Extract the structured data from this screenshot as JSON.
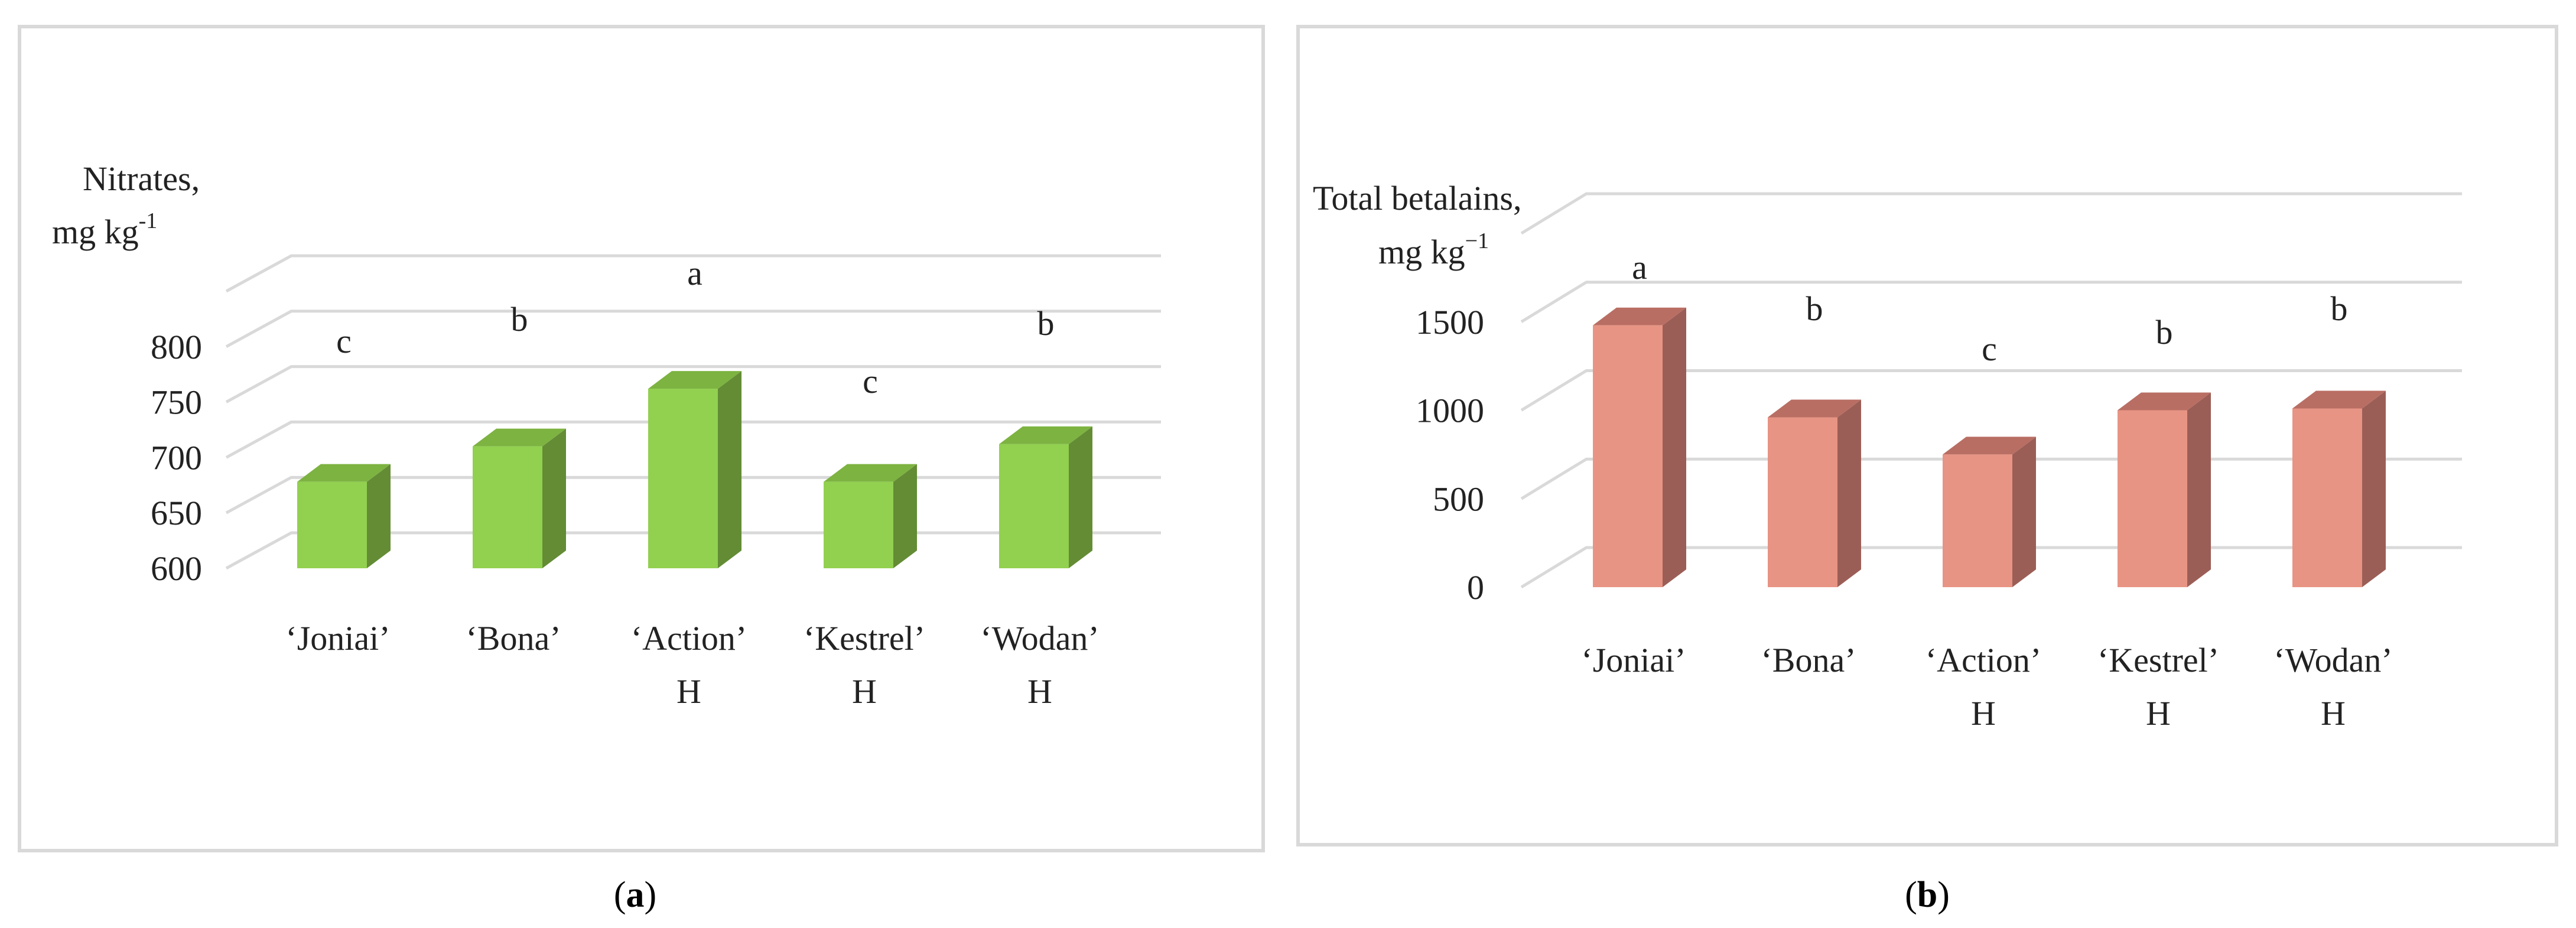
{
  "chart_data": [
    {
      "type": "bar",
      "panel_label": "a",
      "categories": [
        "‘Joniai’",
        "‘Bona’",
        "‘Action’ H",
        "‘Kestrel’ H",
        "‘Wodan’ H"
      ],
      "category_lines": [
        [
          "‘Joniai’"
        ],
        [
          "‘Bona’"
        ],
        [
          "‘Action’",
          "H"
        ],
        [
          "‘Kestrel’",
          "H"
        ],
        [
          "‘Wodan’",
          "H"
        ]
      ],
      "values": [
        678,
        710,
        762,
        678,
        712
      ],
      "significance": [
        "c",
        "b",
        "a",
        "c",
        "b"
      ],
      "ylabel_lines": [
        "Nitrates,",
        "mg kg"
      ],
      "ylabel_superscript": "-1",
      "yticks": [
        600,
        650,
        700,
        750,
        800
      ],
      "ylim": [
        600,
        850
      ],
      "grid": true,
      "color": "#92d050",
      "shade_color": "#638c35",
      "top_color": "#7db341"
    },
    {
      "type": "bar",
      "panel_label": "b",
      "categories": [
        "‘Joniai’",
        "‘Bona’",
        "‘Action’ H",
        "‘Kestrel’ H",
        "‘Wodan’ H"
      ],
      "category_lines": [
        [
          "‘Joniai’"
        ],
        [
          "‘Bona’"
        ],
        [
          "‘Action’",
          "H"
        ],
        [
          "‘Kestrel’",
          "H"
        ],
        [
          "‘Wodan’",
          "H"
        ]
      ],
      "values": [
        1480,
        960,
        750,
        1000,
        1010
      ],
      "significance": [
        "a",
        "b",
        "c",
        "b",
        "b"
      ],
      "ylabel_lines": [
        "Total betalains,",
        "mg kg"
      ],
      "ylabel_superscript": "−1",
      "yticks": [
        0,
        500,
        1000,
        1500
      ],
      "ylim": [
        0,
        2000
      ],
      "grid": true,
      "color": "#e89484",
      "shade_color": "#9b5e56",
      "top_color": "#b96e63"
    }
  ]
}
